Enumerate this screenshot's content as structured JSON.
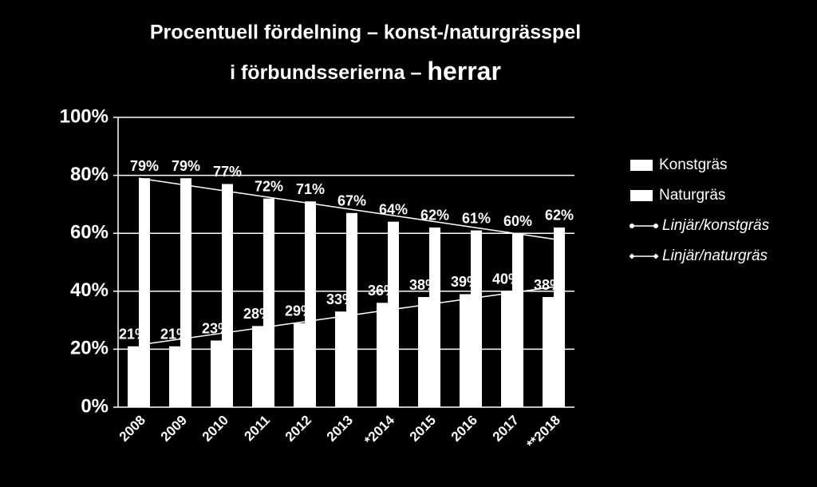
{
  "chart_data": {
    "type": "bar",
    "title": "Procentuell fördelning – konst-/naturgrässpel",
    "subtitle": [
      "i förbundsserierna –",
      "herrar"
    ],
    "categories": [
      "2008",
      "2009",
      "2010",
      "2011",
      "2012",
      "2013",
      "*2014",
      "2015",
      "2016",
      "2017",
      "**2018"
    ],
    "series": [
      {
        "name": "Konstgräs",
        "color": "#ffffff",
        "values": [
          21,
          21,
          23,
          28,
          29,
          33,
          36,
          38,
          39,
          40,
          38
        ],
        "value_labels": [
          "21%",
          "21%",
          "23%",
          "28%",
          "29%",
          "33%",
          "36%",
          "38%",
          "39%",
          "40%",
          "38%"
        ]
      },
      {
        "name": "Naturgräs",
        "color": "#ffffff",
        "values": [
          79,
          79,
          77,
          72,
          71,
          67,
          64,
          62,
          61,
          60,
          62
        ],
        "value_labels": [
          "79%",
          "79%",
          "77%",
          "72%",
          "71%",
          "67%",
          "64%",
          "62%",
          "61%",
          "60%",
          "62%"
        ]
      }
    ],
    "trendlines": [
      {
        "name": "Linjär/konstgräs",
        "color": "#ffffff",
        "marker": "circle",
        "values": [
          21.5,
          23.5,
          25.5,
          27.5,
          29.5,
          31.5,
          33.5,
          35.5,
          37.5,
          39.5,
          41.5
        ]
      },
      {
        "name": "Linjär/naturgräs",
        "color": "#ffffff",
        "marker": "diamond",
        "values": [
          79,
          76.9,
          74.8,
          72.7,
          70.6,
          68.5,
          66.4,
          64.3,
          62.2,
          60.1,
          58
        ]
      }
    ],
    "ylim": [
      0,
      100
    ],
    "yticks": [
      {
        "value": 0,
        "label": "0%"
      },
      {
        "value": 20,
        "label": "20%"
      },
      {
        "value": 40,
        "label": "40%"
      },
      {
        "value": 60,
        "label": "60%"
      },
      {
        "value": 80,
        "label": "80%"
      },
      {
        "value": 100,
        "label": "100%"
      }
    ],
    "grid": true,
    "legend": "right"
  }
}
